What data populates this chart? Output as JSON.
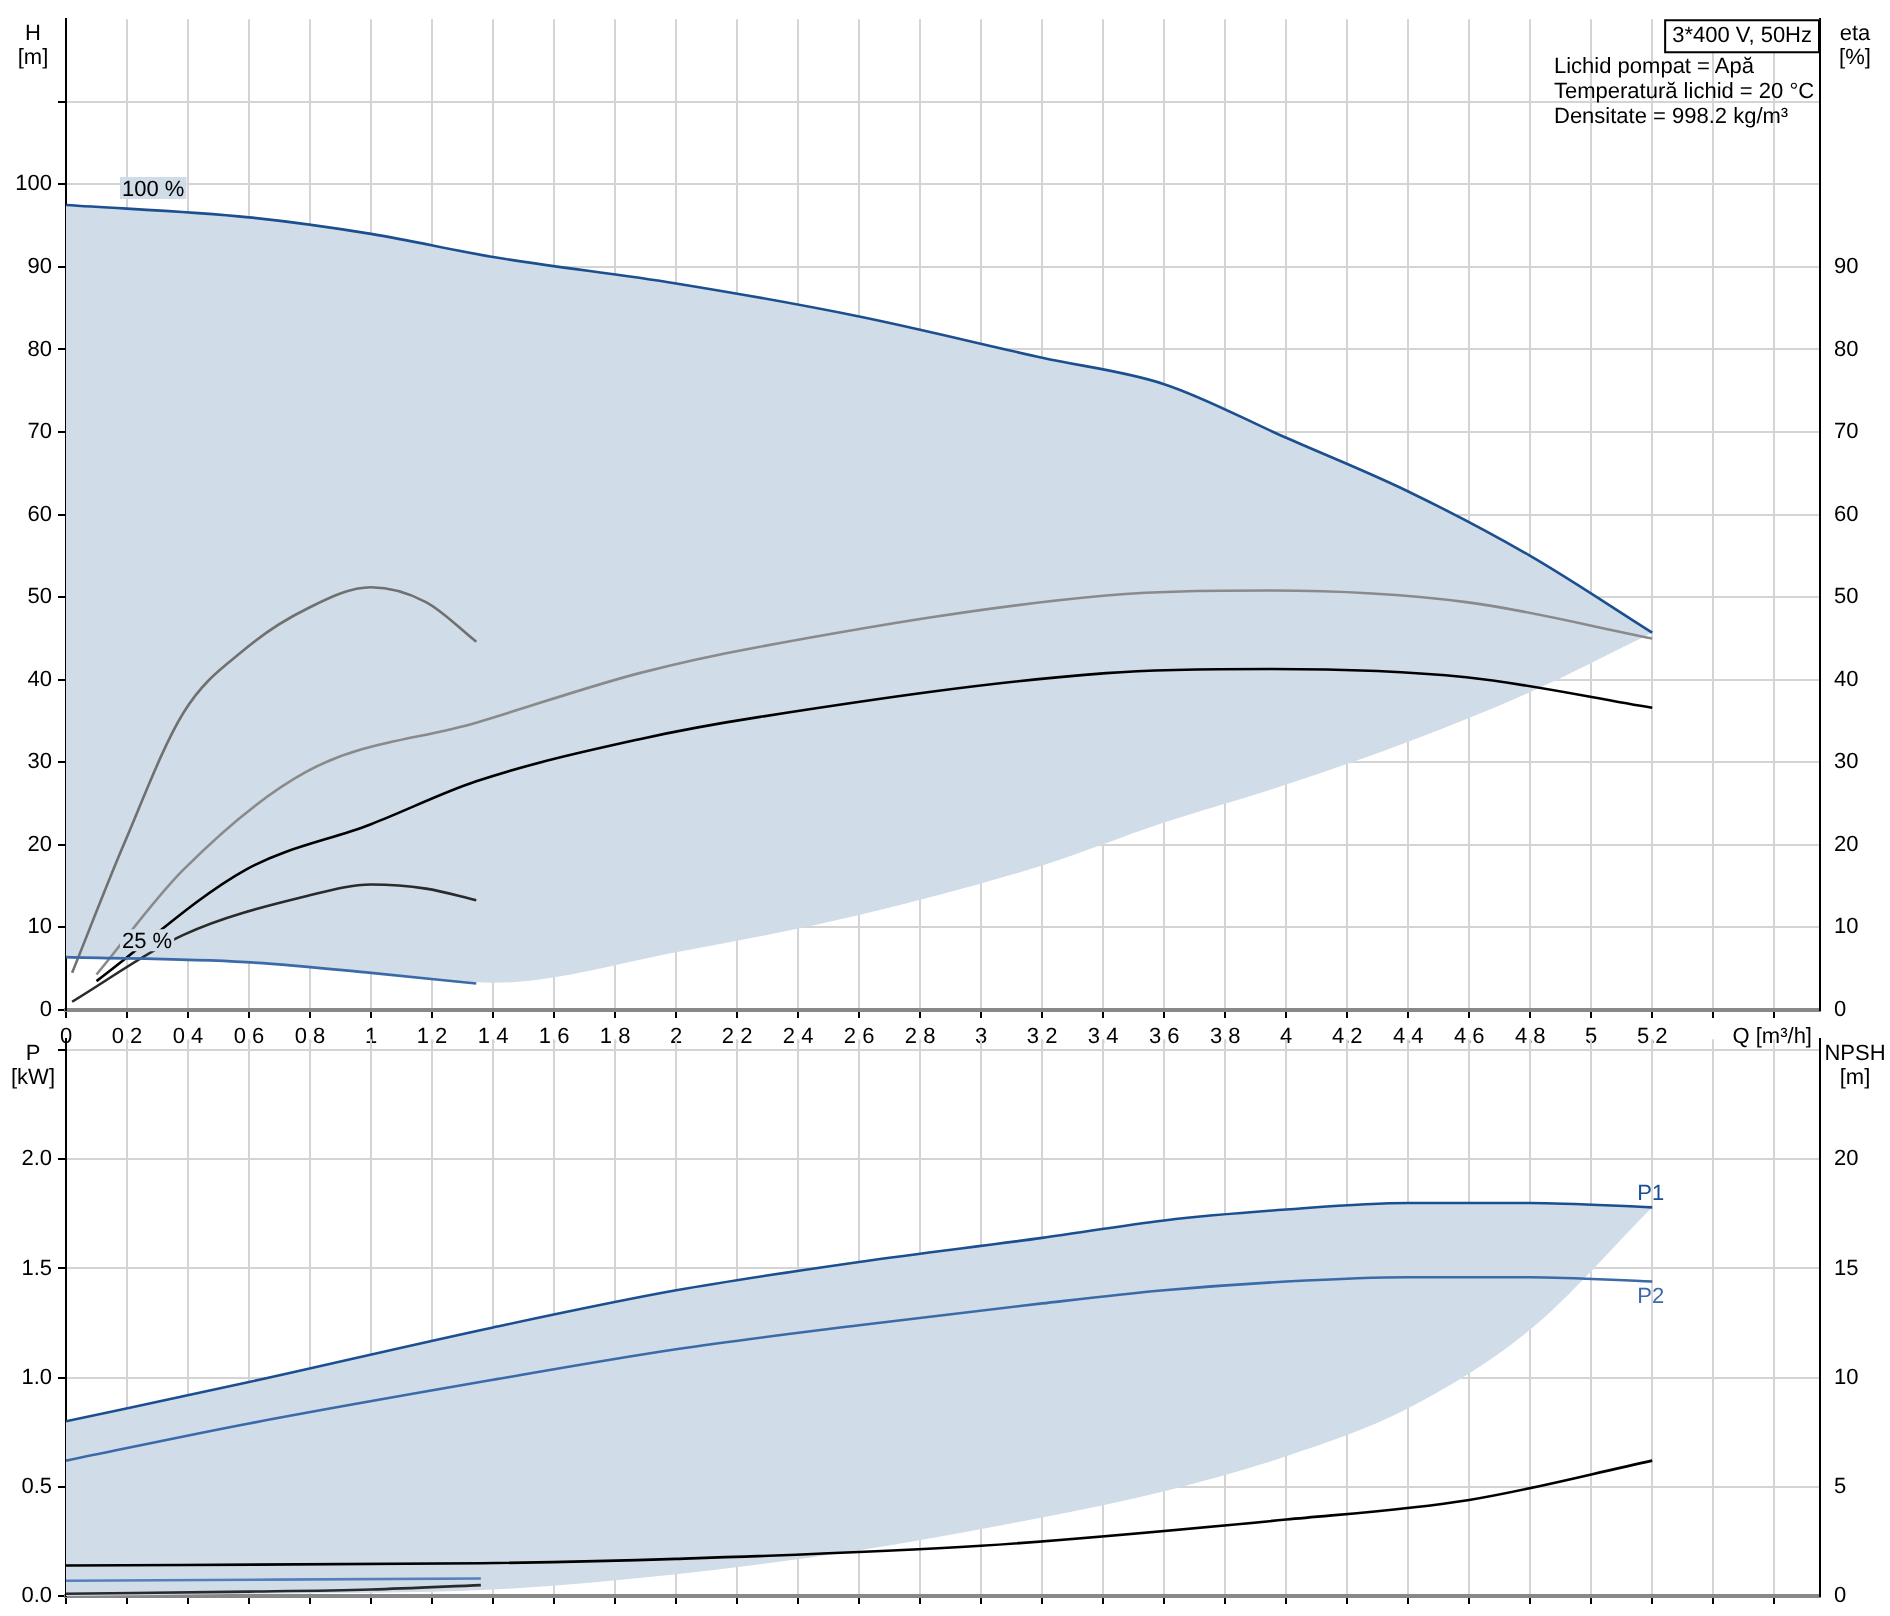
{
  "chart_data": [
    {
      "type": "line",
      "xlabel": "Q [m³/h]",
      "ylabel": "H [m]",
      "y2label": "eta [%]",
      "xlim": [
        0,
        5.75
      ],
      "xticks": [
        0,
        0.2,
        0.4,
        0.6,
        0.8,
        1.0,
        1.2,
        1.4,
        1.6,
        1.8,
        2.0,
        2.2,
        2.4,
        2.6,
        2.8,
        3.0,
        3.2,
        3.4,
        3.6,
        3.8,
        4.0,
        4.2,
        4.4,
        4.6,
        4.8,
        5.0,
        5.2,
        {
          "value": 5.4,
          "label": null
        },
        {
          "value": 5.6,
          "label": null
        }
      ],
      "ylim": [
        0,
        120
      ],
      "yticks": [
        0,
        10,
        20,
        30,
        40,
        50,
        60,
        70,
        80,
        90,
        100,
        {
          "value": 110,
          "label": null
        }
      ],
      "y2lim": [
        0,
        120
      ],
      "y2ticks": [
        0,
        10,
        20,
        30,
        40,
        50,
        60,
        70,
        80,
        90
      ],
      "grid": true,
      "legend": false,
      "marker": "none",
      "line_style": "solid",
      "annotations": [
        "3*400 V, 50Hz",
        "Lichid pompat = Apă",
        "Temperatură lichid = 20 °C",
        "Densitate = 998.2 kg/m³"
      ],
      "series": [
        {
          "name": "100 %",
          "color": "#1b4f8f",
          "x": [
            0,
            0.6,
            1.0,
            1.4,
            2.0,
            2.6,
            3.2,
            3.6,
            4.0,
            4.4,
            4.8,
            5.2
          ],
          "values": [
            97.5,
            96,
            94,
            91.2,
            88,
            84,
            79,
            75.8,
            69.3,
            62.8,
            55,
            45.7
          ],
          "upper": [
            97.5,
            96,
            94,
            91.2,
            88,
            84,
            79,
            75.8,
            69.3,
            62.8,
            55,
            45.7
          ],
          "lower": [
            6.4,
            5.8,
            4.5,
            3.3,
            7,
            11.5,
            17.5,
            22.7,
            27.3,
            32.5,
            38.5,
            45.7
          ]
        },
        {
          "name": "25 %",
          "color": "#3a6aa8",
          "x": [
            0,
            0.59,
            1.0,
            1.345
          ],
          "values": [
            6.4,
            5.8,
            4.5,
            3.2
          ]
        },
        {
          "axis": "y2",
          "color": "#707070",
          "x": [
            0.02,
            0.19,
            0.385,
            0.59,
            0.79,
            1.0,
            1.18,
            1.345
          ],
          "values": [
            4.5,
            20.1,
            36,
            43.8,
            48.6,
            51.2,
            49.4,
            44.6
          ]
        },
        {
          "axis": "y2",
          "color": "#8a8a8a",
          "x": [
            0.1,
            0.385,
            0.79,
            1.345,
            1.88,
            2.275,
            3.41,
            3.95,
            4.59,
            5.2
          ],
          "values": [
            4.3,
            17,
            28.9,
            34.8,
            40.8,
            44,
            50.2,
            50.8,
            49.4,
            45
          ]
        },
        {
          "axis": "y2",
          "color": "#000000",
          "x": [
            0.1,
            0.59,
            1.0,
            1.345,
            1.88,
            2.275,
            3.41,
            3.95,
            4.59,
            5.2
          ],
          "values": [
            3.5,
            17,
            22.5,
            27.7,
            32.8,
            35.5,
            40.8,
            41.3,
            40.3,
            36.6
          ]
        },
        {
          "axis": "y2",
          "color": "#2a2a2a",
          "x": [
            0.02,
            0.385,
            0.79,
            1.0,
            1.18,
            1.345
          ],
          "values": [
            1,
            9.1,
            13.8,
            15.2,
            14.7,
            13.3
          ]
        }
      ]
    },
    {
      "type": "line",
      "ylabel": "P [kW]",
      "y2label": "NPSH [m]",
      "xlim": [
        0,
        5.75
      ],
      "xticks": [
        0,
        0.2,
        0.4,
        0.6,
        0.8,
        1.0,
        1.2,
        1.4,
        1.6,
        1.8,
        2.0,
        2.2,
        2.4,
        2.6,
        2.8,
        3.0,
        3.2,
        3.4,
        3.6,
        3.8,
        4.0,
        4.2,
        4.4,
        4.6,
        4.8,
        5.0,
        5.2,
        5.4,
        5.6
      ],
      "ylim": [
        0,
        2.55
      ],
      "yticks": [
        {
          "value": 0,
          "label": "0.0"
        },
        0.5,
        {
          "value": 1,
          "label": "1.0"
        },
        1.5,
        {
          "value": 2,
          "label": "2.0"
        },
        {
          "value": 2.5,
          "label": null
        }
      ],
      "y2lim": [
        0,
        25.5
      ],
      "y2ticks": [
        0,
        5,
        10,
        15,
        20
      ],
      "tick_labels": "y",
      "grid": true,
      "legend": false,
      "marker": "none",
      "line_style": "solid",
      "series": [
        {
          "name": "P1",
          "color": "#1b4f8f",
          "x": [
            0,
            0.6,
            1.4,
            2.0,
            2.6,
            3.2,
            3.6,
            4.0,
            4.4,
            4.8,
            5.2
          ],
          "values": [
            0.8,
            0.98,
            1.23,
            1.4,
            1.53,
            1.64,
            1.72,
            1.77,
            1.8,
            1.8,
            1.78
          ],
          "upper": [
            0.8,
            0.98,
            1.23,
            1.4,
            1.53,
            1.64,
            1.72,
            1.77,
            1.8,
            1.8,
            1.78
          ],
          "lower": [
            0,
            0.01,
            0.03,
            0.1,
            0.21,
            0.36,
            0.48,
            0.64,
            0.86,
            1.22,
            1.78
          ]
        },
        {
          "name": "P2",
          "color": "#3a6aa8",
          "x": [
            0,
            0.6,
            1.4,
            2.0,
            2.6,
            3.2,
            3.6,
            4.0,
            4.4,
            4.8,
            5.2
          ],
          "values": [
            0.62,
            0.79,
            0.99,
            1.13,
            1.24,
            1.34,
            1.4,
            1.44,
            1.46,
            1.46,
            1.44
          ]
        },
        {
          "color": "#5580bb",
          "x": [
            0,
            1.36
          ],
          "values": [
            0.07,
            0.08
          ]
        },
        {
          "color": "#2a2a2a",
          "x": [
            0,
            0.6,
            1.0,
            1.36
          ],
          "values": [
            0.01,
            0.02,
            0.03,
            0.05
          ]
        },
        {
          "axis": "y2",
          "color": "#000000",
          "x": [
            0,
            1.36,
            2.0,
            3.0,
            4.0,
            4.6,
            5.2
          ],
          "values": [
            1.4,
            1.5,
            1.7,
            2.3,
            3.5,
            4.4,
            6.2
          ]
        }
      ]
    }
  ]
}
